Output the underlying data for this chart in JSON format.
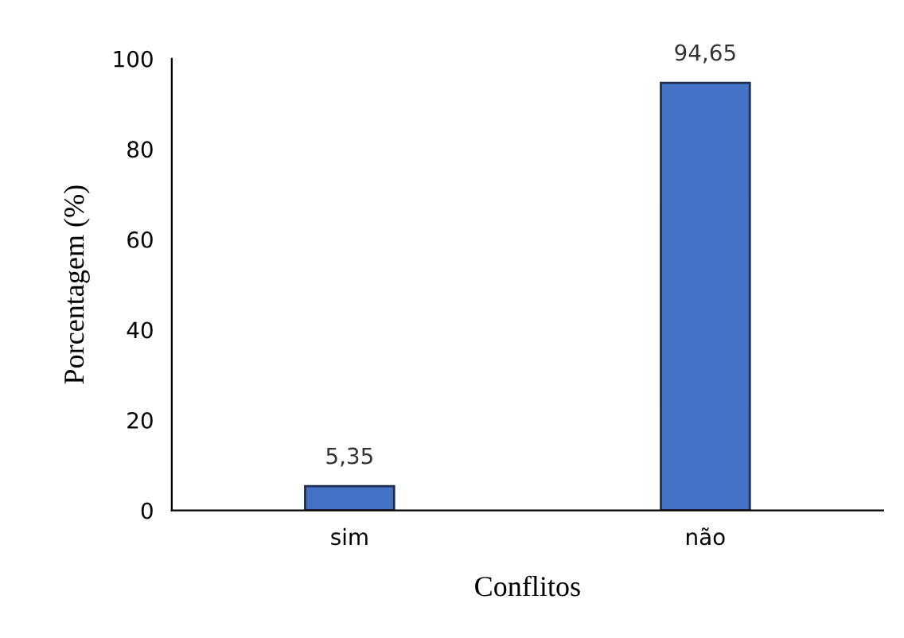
{
  "chart_data": {
    "type": "bar",
    "xlabel": "Conflitos",
    "ylabel": "Porcentagem (%)",
    "categories": [
      "sim",
      "não"
    ],
    "series": [
      {
        "color": "#4472c4",
        "values": [
          5.35,
          94.65
        ],
        "value_labels": [
          "5,35",
          "94,65"
        ]
      }
    ],
    "ylim": [
      0,
      100
    ],
    "yticks": [
      0,
      20,
      40,
      60,
      80,
      100
    ],
    "grid": false,
    "legend": false
  }
}
